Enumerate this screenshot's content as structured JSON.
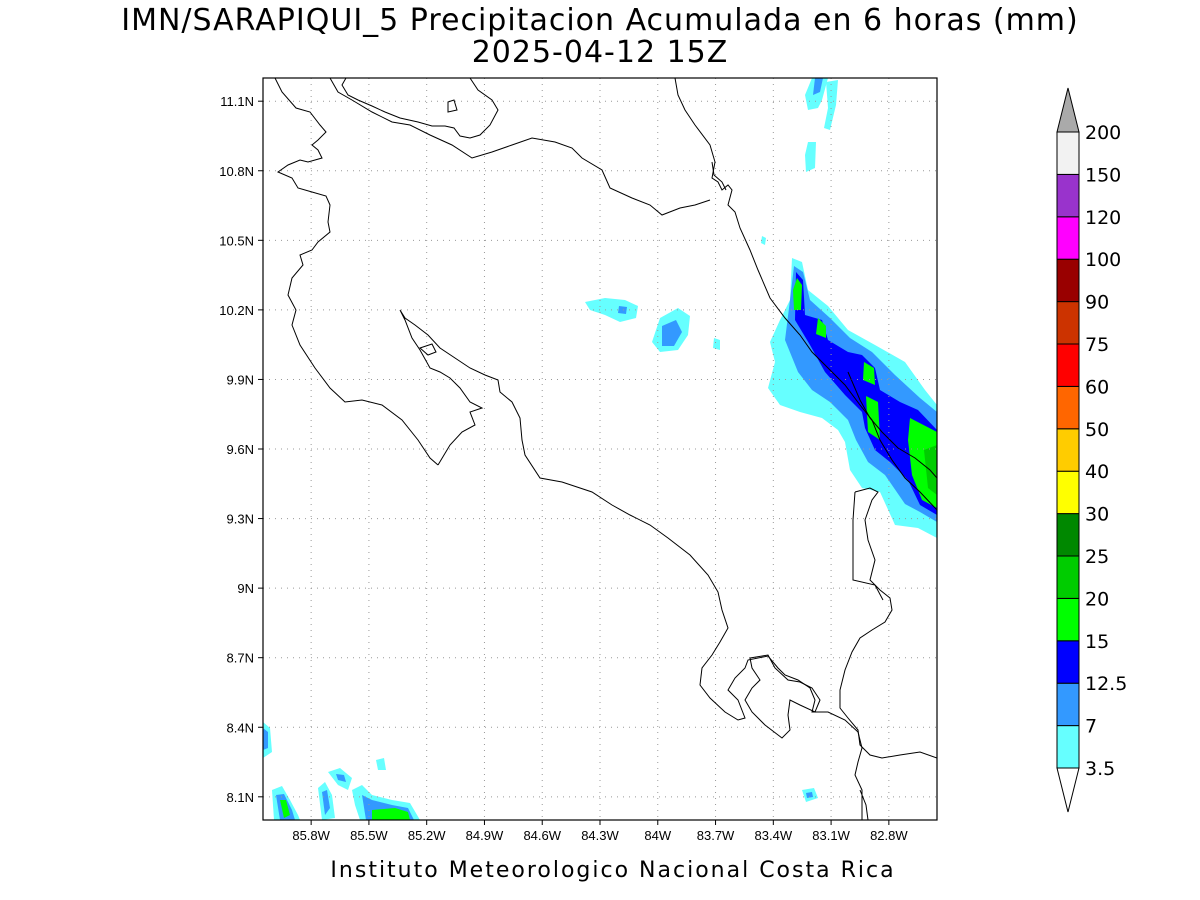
{
  "title": {
    "line1": "IMN/SARAPIQUI_5 Precipitacion Acumulada en 6 horas (mm)",
    "line2": "2025-04-12 15Z"
  },
  "footer": "Instituto Meteorologico Nacional Costa Rica",
  "map": {
    "lon_range": [
      -86.05,
      -82.55
    ],
    "lat_range": [
      8.0,
      11.2
    ],
    "x_ticks": [
      {
        "v": -85.8,
        "label": "85.8W"
      },
      {
        "v": -85.5,
        "label": "85.5W"
      },
      {
        "v": -85.2,
        "label": "85.2W"
      },
      {
        "v": -84.9,
        "label": "84.9W"
      },
      {
        "v": -84.6,
        "label": "84.6W"
      },
      {
        "v": -84.3,
        "label": "84.3W"
      },
      {
        "v": -84.0,
        "label": "84W"
      },
      {
        "v": -83.7,
        "label": "83.7W"
      },
      {
        "v": -83.4,
        "label": "83.4W"
      },
      {
        "v": -83.1,
        "label": "83.1W"
      },
      {
        "v": -82.8,
        "label": "82.8W"
      }
    ],
    "y_ticks": [
      {
        "v": 11.1,
        "label": "11.1N"
      },
      {
        "v": 10.8,
        "label": "10.8N"
      },
      {
        "v": 10.5,
        "label": "10.5N"
      },
      {
        "v": 10.2,
        "label": "10.2N"
      },
      {
        "v": 9.9,
        "label": "9.9N"
      },
      {
        "v": 9.6,
        "label": "9.6N"
      },
      {
        "v": 9.3,
        "label": "9.3N"
      },
      {
        "v": 9.0,
        "label": "9N"
      },
      {
        "v": 8.7,
        "label": "8.7N"
      },
      {
        "v": 8.4,
        "label": "8.4N"
      },
      {
        "v": 8.1,
        "label": "8.1N"
      }
    ],
    "grid": "dotted"
  },
  "colorbar": {
    "levels": [
      "3.5",
      "7",
      "12.5",
      "15",
      "20",
      "25",
      "30",
      "40",
      "50",
      "60",
      "75",
      "90",
      "100",
      "120",
      "150",
      "200"
    ],
    "colors": [
      "#66ffff",
      "#3399ff",
      "#0000ff",
      "#00ff00",
      "#00cc00",
      "#008800",
      "#ffff00",
      "#ffcc00",
      "#ff6600",
      "#ff0000",
      "#cc3300",
      "#990000",
      "#ff00ff",
      "#9933cc",
      "#f2f2f2"
    ],
    "under_color": "#ffffff",
    "over_color": "#aaaaaa"
  },
  "precip_colors": {
    "light": "#66ffff",
    "medium": "#3399ff",
    "heavy": "#0000ff",
    "very_heavy": "#00ff00",
    "extreme": "#00cc00"
  }
}
